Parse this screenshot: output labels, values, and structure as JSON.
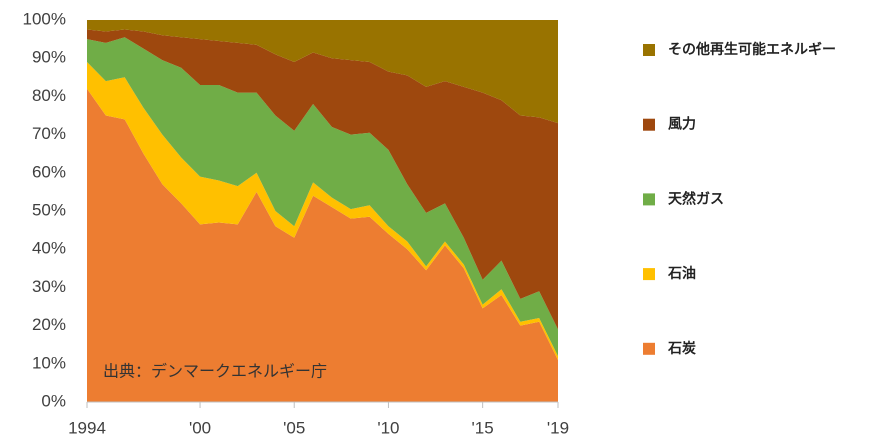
{
  "chart_data": {
    "type": "stacked_area",
    "annotation": "出典：デンマークエネルギー庁",
    "x": [
      1994,
      1995,
      1996,
      1997,
      1998,
      1999,
      2000,
      2001,
      2002,
      2003,
      2004,
      2005,
      2006,
      2007,
      2008,
      2009,
      2010,
      2011,
      2012,
      2013,
      2014,
      2015,
      2016,
      2017,
      2018,
      2019
    ],
    "series": [
      {
        "name": "石炭",
        "color": "#ED7D31",
        "values": [
          82,
          75,
          74,
          65,
          57,
          52,
          46.5,
          47,
          46.5,
          55,
          46,
          43,
          54,
          51,
          48,
          48.5,
          44,
          40,
          34.5,
          41,
          35,
          24.5,
          28,
          20,
          21,
          11
        ]
      },
      {
        "name": "石油",
        "color": "#FFC000",
        "values": [
          7,
          9,
          11,
          12,
          13,
          12,
          12.5,
          11,
          10,
          5,
          4,
          3,
          3.5,
          2.5,
          2.5,
          3,
          2,
          2,
          1,
          1,
          1,
          1,
          1.5,
          1,
          1,
          1
        ]
      },
      {
        "name": "天然ガス",
        "color": "#70AD47",
        "values": [
          6,
          10,
          10.5,
          15.5,
          19.5,
          23.5,
          24,
          25,
          24.5,
          21,
          25,
          25,
          20.5,
          18.5,
          19.5,
          19,
          20,
          15,
          14,
          10,
          7,
          6.5,
          7.5,
          6,
          7,
          7
        ]
      },
      {
        "name": "風力",
        "color": "#9E480E",
        "values": [
          2.5,
          3,
          2,
          4.5,
          6.5,
          8,
          12,
          11.5,
          13,
          12.5,
          16,
          18,
          13.5,
          18,
          19.5,
          18.5,
          20.5,
          28.5,
          33,
          32,
          39.5,
          49,
          42,
          48,
          45.5,
          54
        ]
      },
      {
        "name": "その他再生可能エネルギー",
        "color": "#997300",
        "values": [
          2.5,
          3,
          2.5,
          3,
          4,
          4.5,
          5,
          5.5,
          6,
          6.5,
          9,
          11,
          8.5,
          10,
          10.5,
          11,
          13.5,
          14.5,
          17.5,
          16,
          17.5,
          19,
          21,
          25,
          25.5,
          27
        ]
      }
    ],
    "xlim": [
      1994,
      2019
    ],
    "xticks": [
      1994,
      {
        "value": 2000,
        "label": "'00"
      },
      {
        "value": 2005,
        "label": "'05"
      },
      {
        "value": 2010,
        "label": "'10"
      },
      {
        "value": 2015,
        "label": "'15"
      },
      {
        "value": 2019,
        "label": "'19"
      }
    ],
    "ylim": [
      0,
      100
    ],
    "yticks": [
      {
        "value": 0,
        "label": "0%"
      },
      {
        "value": 10,
        "label": "10%"
      },
      {
        "value": 20,
        "label": "20%"
      },
      {
        "value": 30,
        "label": "30%"
      },
      {
        "value": 40,
        "label": "40%"
      },
      {
        "value": 50,
        "label": "50%"
      },
      {
        "value": 60,
        "label": "60%"
      },
      {
        "value": 70,
        "label": "70%"
      },
      {
        "value": 80,
        "label": "80%"
      },
      {
        "value": 90,
        "label": "90%"
      },
      {
        "value": 100,
        "label": "100%"
      }
    ],
    "legend": "right"
  }
}
